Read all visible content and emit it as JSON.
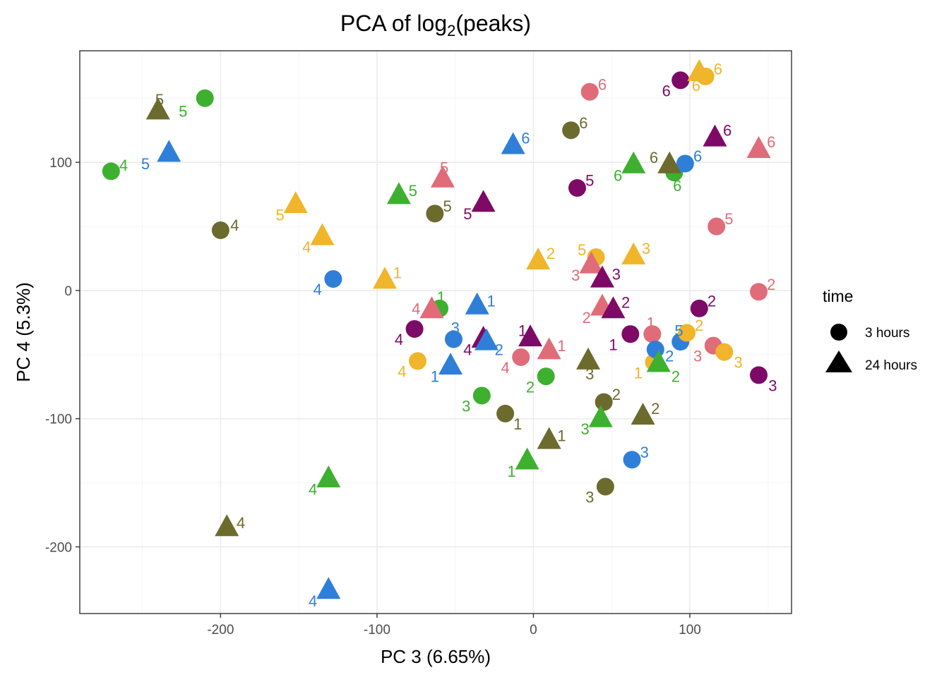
{
  "chart_data": {
    "type": "scatter",
    "title_prefix": "PCA of log",
    "title_sub": "2",
    "title_suffix": "(peaks)",
    "xlabel": "PC 3 (6.65%)",
    "ylabel": "PC 4 (5.3%)",
    "xlim": [
      -290,
      165
    ],
    "ylim": [
      -252,
      187
    ],
    "xticks": [
      -200,
      -100,
      0,
      100
    ],
    "yticks": [
      -200,
      -100,
      0,
      100
    ],
    "grid": true,
    "legend": {
      "title": "time",
      "placement": "right",
      "entries": [
        {
          "label": "3 hours",
          "shape": "circle"
        },
        {
          "label": "24 hours",
          "shape": "triangle"
        }
      ]
    },
    "group_colors": {
      "green": "#3DB02F",
      "blue": "#2F7FD9",
      "olive": "#6D6A2E",
      "gold": "#F0B52A",
      "purple": "#7D0A66",
      "pink": "#E06C7A"
    },
    "points": [
      {
        "x": -270,
        "y": 93,
        "shape": "circle",
        "group": "green",
        "label": "4",
        "lx": 8,
        "ly": 5
      },
      {
        "x": -210,
        "y": 150,
        "shape": "circle",
        "group": "green",
        "label": "5",
        "lx": -14,
        "ly": -10
      },
      {
        "x": -240,
        "y": 140,
        "shape": "triangle",
        "group": "olive",
        "label": "5",
        "lx": 1,
        "ly": 9
      },
      {
        "x": -233,
        "y": 107,
        "shape": "triangle",
        "group": "blue",
        "label": "5",
        "lx": -15,
        "ly": -8
      },
      {
        "x": -200,
        "y": 47,
        "shape": "circle",
        "group": "olive",
        "label": "4",
        "lx": 9,
        "ly": 4
      },
      {
        "x": -196,
        "y": -185,
        "shape": "triangle",
        "group": "olive",
        "label": "4",
        "lx": 9,
        "ly": 4
      },
      {
        "x": -152,
        "y": 67,
        "shape": "triangle",
        "group": "gold",
        "label": "5",
        "lx": -10,
        "ly": -8
      },
      {
        "x": -135,
        "y": 42,
        "shape": "triangle",
        "group": "gold",
        "label": "4",
        "lx": -10,
        "ly": -8
      },
      {
        "x": -128,
        "y": 9,
        "shape": "circle",
        "group": "blue",
        "label": "4",
        "lx": -10,
        "ly": -8
      },
      {
        "x": -131,
        "y": -147,
        "shape": "triangle",
        "group": "green",
        "label": "4",
        "lx": -10,
        "ly": -8
      },
      {
        "x": -131,
        "y": -234,
        "shape": "triangle",
        "group": "blue",
        "label": "4",
        "lx": -10,
        "ly": -8
      },
      {
        "x": -95,
        "y": 8,
        "shape": "triangle",
        "group": "gold",
        "label": "1",
        "lx": 8,
        "ly": 6
      },
      {
        "x": -86,
        "y": 74,
        "shape": "triangle",
        "group": "green",
        "label": "5",
        "lx": 9,
        "ly": 4
      },
      {
        "x": -63,
        "y": 60,
        "shape": "circle",
        "group": "olive",
        "label": "5",
        "lx": 8,
        "ly": 6
      },
      {
        "x": -58,
        "y": 87,
        "shape": "triangle",
        "group": "pink",
        "label": "5",
        "lx": 1,
        "ly": 9
      },
      {
        "x": -60,
        "y": -14,
        "shape": "circle",
        "group": "green",
        "label": "1",
        "lx": 1,
        "ly": 9
      },
      {
        "x": -65,
        "y": -15,
        "shape": "triangle",
        "group": "pink",
        "label": "4",
        "lx": -10,
        "ly": 1
      },
      {
        "x": -76,
        "y": -30,
        "shape": "circle",
        "group": "purple",
        "label": "4",
        "lx": -10,
        "ly": -8
      },
      {
        "x": -74,
        "y": -55,
        "shape": "circle",
        "group": "gold",
        "label": "4",
        "lx": -10,
        "ly": -8
      },
      {
        "x": -51,
        "y": -38,
        "shape": "circle",
        "group": "blue",
        "label": "3",
        "lx": 1,
        "ly": 9
      },
      {
        "x": -53,
        "y": -59,
        "shape": "triangle",
        "group": "blue",
        "label": "1",
        "lx": -10,
        "ly": -8
      },
      {
        "x": -36,
        "y": -12,
        "shape": "triangle",
        "group": "blue",
        "label": "1",
        "lx": 9,
        "ly": 4
      },
      {
        "x": -32,
        "y": -38,
        "shape": "triangle",
        "group": "purple",
        "label": "4",
        "lx": -10,
        "ly": -8
      },
      {
        "x": -30,
        "y": -40,
        "shape": "triangle",
        "group": "blue",
        "label": "2",
        "lx": 8,
        "ly": -6
      },
      {
        "x": -32,
        "y": 68,
        "shape": "triangle",
        "group": "purple",
        "label": "5",
        "lx": -10,
        "ly": -8
      },
      {
        "x": -13,
        "y": 113,
        "shape": "triangle",
        "group": "blue",
        "label": "6",
        "lx": 8,
        "ly": 6
      },
      {
        "x": -8,
        "y": -52,
        "shape": "circle",
        "group": "pink",
        "label": "4",
        "lx": -10,
        "ly": -8
      },
      {
        "x": -2,
        "y": -37,
        "shape": "triangle",
        "group": "purple",
        "label": "1",
        "lx": -5,
        "ly": 6
      },
      {
        "x": 3,
        "y": 23,
        "shape": "triangle",
        "group": "gold",
        "label": "2",
        "lx": 8,
        "ly": 6
      },
      {
        "x": 8,
        "y": -67,
        "shape": "circle",
        "group": "green",
        "label": "2",
        "lx": -10,
        "ly": -8
      },
      {
        "x": 10,
        "y": -47,
        "shape": "triangle",
        "group": "pink",
        "label": "1",
        "lx": 8,
        "ly": 4
      },
      {
        "x": -33,
        "y": -82,
        "shape": "circle",
        "group": "green",
        "label": "3",
        "lx": -10,
        "ly": -8
      },
      {
        "x": -18,
        "y": -96,
        "shape": "circle",
        "group": "olive",
        "label": "1",
        "lx": 8,
        "ly": -8
      },
      {
        "x": -4,
        "y": -133,
        "shape": "triangle",
        "group": "green",
        "label": "1",
        "lx": -10,
        "ly": -8
      },
      {
        "x": 10,
        "y": -117,
        "shape": "triangle",
        "group": "olive",
        "label": "1",
        "lx": 8,
        "ly": 4
      },
      {
        "x": 24,
        "y": 125,
        "shape": "circle",
        "group": "olive",
        "label": "6",
        "lx": 8,
        "ly": 6
      },
      {
        "x": 28,
        "y": 80,
        "shape": "circle",
        "group": "purple",
        "label": "5",
        "lx": 8,
        "ly": 6
      },
      {
        "x": 36,
        "y": 155,
        "shape": "circle",
        "group": "pink",
        "label": "6",
        "lx": 8,
        "ly": 6
      },
      {
        "x": 35,
        "y": -55,
        "shape": "triangle",
        "group": "olive",
        "label": "3",
        "lx": 1,
        "ly": -10
      },
      {
        "x": 40,
        "y": 26,
        "shape": "circle",
        "group": "gold",
        "label": "5",
        "lx": -9,
        "ly": 6
      },
      {
        "x": 37,
        "y": 20,
        "shape": "triangle",
        "group": "pink",
        "label": "3",
        "lx": -10,
        "ly": -8
      },
      {
        "x": 44,
        "y": 9,
        "shape": "triangle",
        "group": "purple",
        "label": "3",
        "lx": 9,
        "ly": 4
      },
      {
        "x": 44,
        "y": -13,
        "shape": "triangle",
        "group": "pink",
        "label": "2",
        "lx": -10,
        "ly": -8
      },
      {
        "x": 51,
        "y": -15,
        "shape": "triangle",
        "group": "purple",
        "label": "2",
        "lx": 8,
        "ly": 6
      },
      {
        "x": 45,
        "y": -87,
        "shape": "circle",
        "group": "olive",
        "label": "2",
        "lx": 8,
        "ly": 6
      },
      {
        "x": 43,
        "y": -100,
        "shape": "triangle",
        "group": "green",
        "label": "3",
        "lx": -10,
        "ly": -8
      },
      {
        "x": 46,
        "y": -153,
        "shape": "circle",
        "group": "olive",
        "label": "3",
        "lx": -10,
        "ly": -8
      },
      {
        "x": 62,
        "y": -34,
        "shape": "circle",
        "group": "purple",
        "label": "1",
        "lx": -11,
        "ly": -8
      },
      {
        "x": 63,
        "y": -132,
        "shape": "circle",
        "group": "blue",
        "label": "3",
        "lx": 8,
        "ly": 6
      },
      {
        "x": 64,
        "y": 27,
        "shape": "triangle",
        "group": "gold",
        "label": "3",
        "lx": 8,
        "ly": 6
      },
      {
        "x": 64,
        "y": 98,
        "shape": "triangle",
        "group": "green",
        "label": "6",
        "lx": -10,
        "ly": -8
      },
      {
        "x": 70,
        "y": -98,
        "shape": "triangle",
        "group": "olive",
        "label": "2",
        "lx": 8,
        "ly": 6
      },
      {
        "x": 76,
        "y": -34,
        "shape": "circle",
        "group": "pink",
        "label": "1",
        "lx": -1,
        "ly": 9
      },
      {
        "x": 77,
        "y": -56,
        "shape": "circle",
        "group": "gold",
        "label": "1",
        "lx": -10,
        "ly": -8
      },
      {
        "x": 78,
        "y": -46,
        "shape": "circle",
        "group": "blue",
        "label": "2",
        "lx": 9,
        "ly": -5
      },
      {
        "x": 80,
        "y": -57,
        "shape": "triangle",
        "group": "green",
        "label": "2",
        "lx": 11,
        "ly": -10
      },
      {
        "x": 87,
        "y": 98,
        "shape": "triangle",
        "group": "olive",
        "label": "6",
        "lx": -10,
        "ly": 6
      },
      {
        "x": 90,
        "y": 92,
        "shape": "circle",
        "group": "green",
        "label": "6",
        "lx": 2,
        "ly": -10
      },
      {
        "x": 94,
        "y": 164,
        "shape": "circle",
        "group": "purple",
        "label": "6",
        "lx": -9,
        "ly": -8
      },
      {
        "x": 94,
        "y": -40,
        "shape": "circle",
        "group": "blue",
        "label": "5",
        "lx": -1,
        "ly": 9
      },
      {
        "x": 98,
        "y": -33,
        "shape": "circle",
        "group": "gold",
        "label": "2",
        "lx": 8,
        "ly": 6
      },
      {
        "x": 97,
        "y": 99,
        "shape": "circle",
        "group": "blue",
        "label": "6",
        "lx": 8,
        "ly": 6
      },
      {
        "x": 106,
        "y": -14,
        "shape": "circle",
        "group": "purple",
        "label": "2",
        "lx": 8,
        "ly": 6
      },
      {
        "x": 106,
        "y": 170,
        "shape": "triangle",
        "group": "gold",
        "label": "6",
        "lx": -2,
        "ly": -10
      },
      {
        "x": 110,
        "y": 167,
        "shape": "circle",
        "group": "gold",
        "label": "6",
        "lx": 8,
        "ly": 6
      },
      {
        "x": 115,
        "y": -43,
        "shape": "circle",
        "group": "pink",
        "label": "3",
        "lx": -10,
        "ly": -8
      },
      {
        "x": 116,
        "y": 119,
        "shape": "triangle",
        "group": "purple",
        "label": "6",
        "lx": 8,
        "ly": 6
      },
      {
        "x": 117,
        "y": 50,
        "shape": "circle",
        "group": "pink",
        "label": "5",
        "lx": 8,
        "ly": 6
      },
      {
        "x": 122,
        "y": -48,
        "shape": "circle",
        "group": "gold",
        "label": "3",
        "lx": 9,
        "ly": -8
      },
      {
        "x": 144,
        "y": -1,
        "shape": "circle",
        "group": "pink",
        "label": "2",
        "lx": 8,
        "ly": 6
      },
      {
        "x": 144,
        "y": -66,
        "shape": "circle",
        "group": "purple",
        "label": "3",
        "lx": 9,
        "ly": -8
      },
      {
        "x": 144,
        "y": 110,
        "shape": "triangle",
        "group": "pink",
        "label": "6",
        "lx": 8,
        "ly": 6
      }
    ]
  }
}
